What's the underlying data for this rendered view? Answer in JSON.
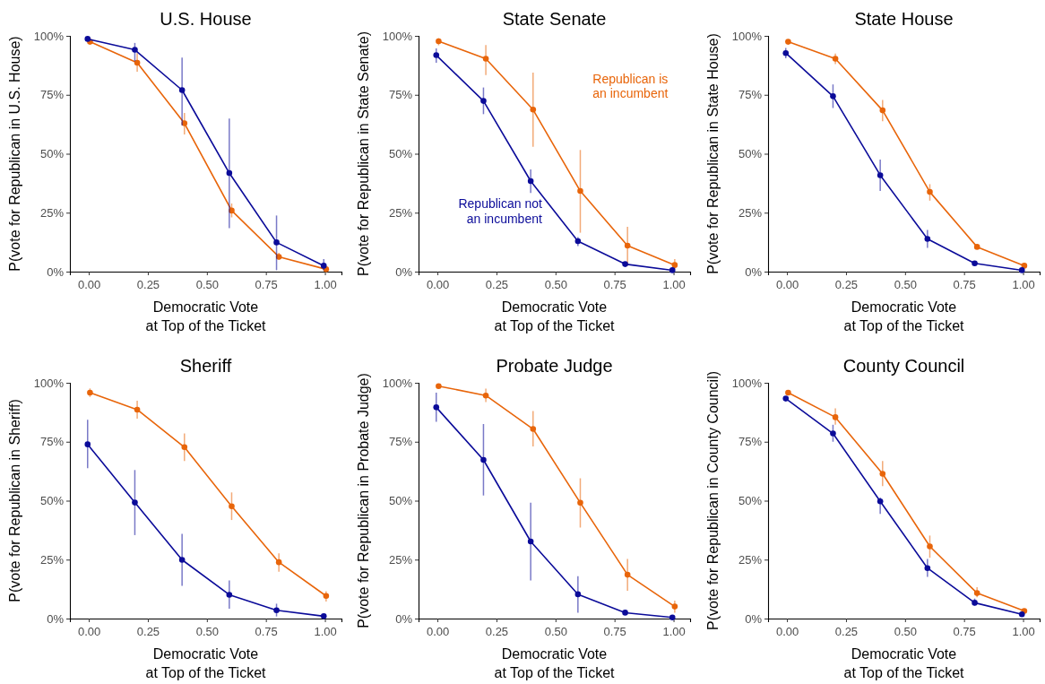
{
  "chart_data": [
    {
      "type": "line",
      "title": "U.S. House",
      "xlabel": "Democratic Vote\nat Top of the Ticket",
      "ylabel": "P(vote for Republican in U.S. House)",
      "marker": "circle",
      "line_style": "solid",
      "grid": false,
      "xlim": [
        -0.08,
        1.07
      ],
      "xticks": [
        {
          "value": 0,
          "label": "0.00"
        },
        {
          "value": 0.25,
          "label": "0.25"
        },
        {
          "value": 0.5,
          "label": "0.50"
        },
        {
          "value": 0.75,
          "label": "0.75"
        },
        {
          "value": 1,
          "label": "1.00"
        }
      ],
      "ylim": [
        0,
        100
      ],
      "yticks": [
        {
          "value": 0,
          "label": "0%"
        },
        {
          "value": 25,
          "label": "25%"
        },
        {
          "value": 50,
          "label": "50%"
        },
        {
          "value": 75,
          "label": "75%"
        },
        {
          "value": 100,
          "label": "100%"
        }
      ],
      "series": [
        {
          "color": "#e8650a",
          "x": [
            0.005,
            0.205,
            0.405,
            0.605,
            0.805,
            1.005
          ],
          "values": [
            97.5,
            88.6,
            62.9,
            25.9,
            6.3,
            1.0
          ],
          "errors": [
            null,
            [
              84.8,
              92.7
            ],
            [
              58.2,
              67.3
            ],
            [
              23.0,
              28.9
            ],
            [
              5.0,
              8.0
            ],
            null
          ]
        },
        {
          "color": "#0b0b99",
          "x": [
            -0.005,
            0.195,
            0.395,
            0.595,
            0.795,
            0.995
          ],
          "values": [
            98.7,
            94.1,
            77.0,
            41.8,
            12.4,
            2.5
          ],
          "errors": [
            null,
            [
              89.2,
              97.0
            ],
            [
              62.0,
              90.8
            ],
            [
              18.4,
              64.9
            ],
            [
              0.6,
              23.8
            ],
            [
              0.6,
              5.3
            ]
          ]
        }
      ]
    },
    {
      "type": "line",
      "title": "State Senate",
      "xlabel": "Democratic Vote\nat Top of the Ticket",
      "ylabel": "P(vote for Republican in State Senate)",
      "marker": "circle",
      "line_style": "solid",
      "grid": false,
      "xlim": [
        -0.08,
        1.07
      ],
      "xticks": [
        {
          "value": 0,
          "label": "0.00"
        },
        {
          "value": 0.25,
          "label": "0.25"
        },
        {
          "value": 0.5,
          "label": "0.50"
        },
        {
          "value": 0.75,
          "label": "0.75"
        },
        {
          "value": 1,
          "label": "1.00"
        }
      ],
      "ylim": [
        0,
        100
      ],
      "yticks": [
        {
          "value": 0,
          "label": "0%"
        },
        {
          "value": 25,
          "label": "25%"
        },
        {
          "value": 50,
          "label": "50%"
        },
        {
          "value": 75,
          "label": "75%"
        },
        {
          "value": 100,
          "label": "100%"
        }
      ],
      "series": [
        {
          "name": "Republican is\nan incumbent",
          "color": "#e8650a",
          "x": [
            0.005,
            0.205,
            0.405,
            0.605,
            0.805,
            1.005
          ],
          "values": [
            97.7,
            90.3,
            68.7,
            34.2,
            11.0,
            2.8
          ],
          "errors": [
            [
              96.0,
              99.0
            ],
            [
              83.4,
              96.1
            ],
            [
              52.9,
              84.4
            ],
            [
              16.5,
              51.6
            ],
            [
              2.5,
              19.0
            ],
            [
              1.0,
              5.3
            ]
          ]
        },
        {
          "name": "Republican not\nan incumbent",
          "color": "#0b0b99",
          "x": [
            -0.005,
            0.195,
            0.395,
            0.595,
            0.795,
            0.995
          ],
          "values": [
            91.8,
            72.4,
            38.4,
            12.9,
            3.2,
            0.6
          ],
          "errors": [
            [
              88.6,
              94.7
            ],
            [
              66.8,
              78.1
            ],
            [
              33.4,
              43.3
            ],
            [
              10.8,
              14.6
            ],
            null,
            null
          ]
        }
      ]
    },
    {
      "type": "line",
      "title": "State House",
      "xlabel": "Democratic Vote\nat Top of the Ticket",
      "ylabel": "P(vote for Republican in State House)",
      "marker": "circle",
      "line_style": "solid",
      "grid": false,
      "xlim": [
        -0.08,
        1.07
      ],
      "xticks": [
        {
          "value": 0,
          "label": "0.00"
        },
        {
          "value": 0.25,
          "label": "0.25"
        },
        {
          "value": 0.5,
          "label": "0.50"
        },
        {
          "value": 0.75,
          "label": "0.75"
        },
        {
          "value": 1,
          "label": "1.00"
        }
      ],
      "ylim": [
        0,
        100
      ],
      "yticks": [
        {
          "value": 0,
          "label": "0%"
        },
        {
          "value": 25,
          "label": "25%"
        },
        {
          "value": 50,
          "label": "50%"
        },
        {
          "value": 75,
          "label": "75%"
        },
        {
          "value": 100,
          "label": "100%"
        }
      ],
      "series": [
        {
          "color": "#e8650a",
          "x": [
            0.005,
            0.205,
            0.405,
            0.605,
            0.805,
            1.005
          ],
          "values": [
            97.5,
            90.3,
            68.4,
            33.8,
            10.5,
            2.5
          ],
          "errors": [
            null,
            [
              88.0,
              92.5
            ],
            [
              63.8,
              72.8
            ],
            [
              30.1,
              37.1
            ],
            [
              9.5,
              11.7
            ],
            null
          ]
        },
        {
          "color": "#0b0b99",
          "x": [
            -0.005,
            0.195,
            0.395,
            0.595,
            0.795,
            0.995
          ],
          "values": [
            92.7,
            74.4,
            40.9,
            13.9,
            3.5,
            0.6
          ],
          "errors": [
            [
              90.5,
              94.9
            ],
            [
              69.4,
              79.4
            ],
            [
              34.2,
              47.5
            ],
            [
              10.1,
              17.7
            ],
            null,
            null
          ]
        }
      ]
    },
    {
      "type": "line",
      "title": "Sheriff",
      "xlabel": "Democratic Vote\nat Top of the Ticket",
      "ylabel": "P(vote for Republican in Sheriff)",
      "marker": "circle",
      "line_style": "solid",
      "grid": false,
      "xlim": [
        -0.08,
        1.07
      ],
      "xticks": [
        {
          "value": 0,
          "label": "0.00"
        },
        {
          "value": 0.25,
          "label": "0.25"
        },
        {
          "value": 0.5,
          "label": "0.50"
        },
        {
          "value": 0.75,
          "label": "0.75"
        },
        {
          "value": 1,
          "label": "1.00"
        }
      ],
      "ylim": [
        0,
        100
      ],
      "yticks": [
        {
          "value": 0,
          "label": "0%"
        },
        {
          "value": 25,
          "label": "25%"
        },
        {
          "value": 50,
          "label": "50%"
        },
        {
          "value": 75,
          "label": "75%"
        },
        {
          "value": 100,
          "label": "100%"
        }
      ],
      "series": [
        {
          "color": "#e8650a",
          "x": [
            0.005,
            0.205,
            0.405,
            0.605,
            0.805,
            1.005
          ],
          "values": [
            95.8,
            88.6,
            72.7,
            47.6,
            23.9,
            9.6
          ],
          "errors": [
            [
              94.0,
              97.6
            ],
            [
              84.8,
              92.4
            ],
            [
              66.8,
              78.5
            ],
            [
              41.8,
              53.5
            ],
            [
              19.9,
              27.7
            ],
            [
              7.2,
              11.6
            ]
          ]
        },
        {
          "color": "#0b0b99",
          "x": [
            -0.005,
            0.195,
            0.395,
            0.595,
            0.795,
            0.995
          ],
          "values": [
            73.9,
            49.2,
            24.9,
            10.1,
            3.5,
            1.0
          ],
          "errors": [
            [
              63.8,
              84.3
            ],
            [
              35.4,
              63.0
            ],
            [
              13.9,
              35.9
            ],
            [
              4.2,
              16.2
            ],
            [
              0.9,
              6.3
            ],
            null
          ]
        }
      ]
    },
    {
      "type": "line",
      "title": "Probate Judge",
      "xlabel": "Democratic Vote\nat Top of the Ticket",
      "ylabel": "P(vote for Republican in Probate Judge)",
      "marker": "circle",
      "line_style": "solid",
      "grid": false,
      "xlim": [
        -0.08,
        1.07
      ],
      "xticks": [
        {
          "value": 0,
          "label": "0.00"
        },
        {
          "value": 0.25,
          "label": "0.25"
        },
        {
          "value": 0.5,
          "label": "0.50"
        },
        {
          "value": 0.75,
          "label": "0.75"
        },
        {
          "value": 1,
          "label": "1.00"
        }
      ],
      "ylim": [
        0,
        100
      ],
      "yticks": [
        {
          "value": 0,
          "label": "0%"
        },
        {
          "value": 25,
          "label": "25%"
        },
        {
          "value": 50,
          "label": "50%"
        },
        {
          "value": 75,
          "label": "75%"
        },
        {
          "value": 100,
          "label": "100%"
        }
      ],
      "series": [
        {
          "color": "#e8650a",
          "x": [
            0.005,
            0.205,
            0.405,
            0.605,
            0.805,
            1.005
          ],
          "values": [
            98.6,
            94.6,
            80.4,
            49.1,
            18.6,
            5.1
          ],
          "errors": [
            null,
            [
              91.8,
              97.5
            ],
            [
              73.0,
              88.0
            ],
            [
              38.6,
              59.5
            ],
            [
              11.8,
              25.3
            ],
            [
              2.5,
              7.6
            ]
          ]
        },
        {
          "color": "#0b0b99",
          "x": [
            -0.005,
            0.195,
            0.395,
            0.595,
            0.795,
            0.995
          ],
          "values": [
            89.6,
            67.3,
            32.7,
            10.3,
            2.5,
            0.5
          ],
          "errors": [
            [
              83.5,
              95.8
            ],
            [
              52.2,
              82.5
            ],
            [
              16.2,
              49.1
            ],
            [
              2.5,
              18.0
            ],
            null,
            null
          ]
        }
      ]
    },
    {
      "type": "line",
      "title": "County Council",
      "xlabel": "Democratic Vote\nat Top of the Ticket",
      "ylabel": "P(vote for Republican in County Council)",
      "marker": "circle",
      "line_style": "solid",
      "grid": false,
      "xlim": [
        -0.08,
        1.07
      ],
      "xticks": [
        {
          "value": 0,
          "label": "0.00"
        },
        {
          "value": 0.25,
          "label": "0.25"
        },
        {
          "value": 0.5,
          "label": "0.50"
        },
        {
          "value": 0.75,
          "label": "0.75"
        },
        {
          "value": 1,
          "label": "1.00"
        }
      ],
      "ylim": [
        0,
        100
      ],
      "yticks": [
        {
          "value": 0,
          "label": "0%"
        },
        {
          "value": 25,
          "label": "25%"
        },
        {
          "value": 50,
          "label": "50%"
        },
        {
          "value": 75,
          "label": "75%"
        },
        {
          "value": 100,
          "label": "100%"
        }
      ],
      "series": [
        {
          "color": "#e8650a",
          "x": [
            0.005,
            0.205,
            0.405,
            0.605,
            0.805,
            1.005
          ],
          "values": [
            95.8,
            85.4,
            61.4,
            30.6,
            10.8,
            3.2
          ],
          "errors": [
            null,
            [
              82.2,
              89.2
            ],
            [
              56.2,
              66.8
            ],
            [
              25.8,
              35.2
            ],
            [
              9.0,
              13.3
            ],
            null
          ]
        },
        {
          "color": "#0b0b99",
          "x": [
            -0.005,
            0.195,
            0.395,
            0.595,
            0.795,
            0.995
          ],
          "values": [
            93.3,
            78.5,
            49.7,
            21.4,
            6.7,
            1.8
          ],
          "errors": [
            null,
            [
              75.0,
              82.2
            ],
            [
              44.4,
              51.3
            ],
            [
              17.7,
              25.3
            ],
            [
              5.5,
              8.5
            ],
            null
          ]
        }
      ]
    }
  ]
}
